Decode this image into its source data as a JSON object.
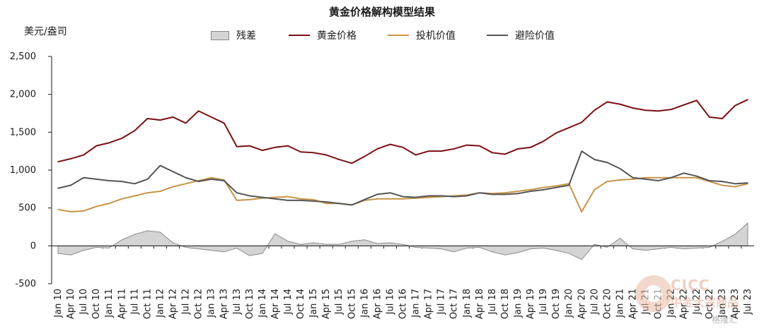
{
  "title": "黄金价格解构模型结果",
  "unit_label": "美元/盎司",
  "legend": [
    {
      "label": "残差",
      "kind": "area",
      "color": "#d4d4d4",
      "edge": "#8a8a8a",
      "icon": "area-swatch"
    },
    {
      "label": "黄金价格",
      "kind": "line",
      "color": "#7a0f12",
      "icon": "line-swatch"
    },
    {
      "label": "投机价值",
      "kind": "line",
      "color": "#c69448",
      "icon": "line-swatch"
    },
    {
      "label": "避险价值",
      "kind": "line",
      "color": "#555555",
      "icon": "line-swatch"
    }
  ],
  "watermark": {
    "logo_text": "CICC",
    "logo_subtext": "中金大宗商品",
    "source_text": "格隆汇"
  },
  "chart_data": {
    "type": "line",
    "x_ticks": [
      "Jan 10",
      "Apr 10",
      "Jul 10",
      "Oct 10",
      "Jan 11",
      "Apr 11",
      "Jul 11",
      "Oct 11",
      "Jan 12",
      "Apr 12",
      "Jul 12",
      "Oct 12",
      "Jan 13",
      "Apr 13",
      "Jul 13",
      "Oct 13",
      "Jan 14",
      "Apr 14",
      "Jul 14",
      "Oct 14",
      "Jan 15",
      "Apr 15",
      "Jul 15",
      "Oct 15",
      "Jan 16",
      "Apr 16",
      "Jul 16",
      "Oct 16",
      "Jan 17",
      "Apr 17",
      "Jul 17",
      "Oct 17",
      "Jan 18",
      "Apr 18",
      "Jul 18",
      "Oct 18",
      "Jan 19",
      "Apr 19",
      "Jul 19",
      "Oct 19",
      "Jan 20",
      "Apr 20",
      "Jul 20",
      "Oct 20",
      "Jan 21",
      "Apr 21",
      "Jul 21",
      "Oct 21",
      "Jan 22",
      "Apr 22",
      "Jul 22",
      "Oct 22",
      "Jan 23",
      "Apr 23",
      "Jul 23"
    ],
    "y_ticks": [
      "2,500",
      "2,000",
      "1,500",
      "1,000",
      "500",
      "0",
      "-500"
    ],
    "ylim": [
      -500,
      2500
    ],
    "y_tick_values": [
      2500,
      2000,
      1500,
      1000,
      500,
      0,
      -500
    ],
    "grid": false,
    "series": [
      {
        "name": "残差",
        "type": "area",
        "color": "#d4d4d4",
        "edge": "#8a8a8a",
        "values": [
          -100,
          -120,
          -60,
          -20,
          -30,
          80,
          150,
          200,
          180,
          40,
          -20,
          -40,
          -60,
          -80,
          -30,
          -130,
          -100,
          160,
          60,
          20,
          40,
          20,
          20,
          60,
          80,
          30,
          40,
          20,
          -20,
          -30,
          -40,
          -80,
          -30,
          -20,
          -80,
          -120,
          -90,
          -40,
          -30,
          -60,
          -100,
          -180,
          20,
          -20,
          100,
          -40,
          -60,
          -40,
          -20,
          -40,
          -30,
          -20,
          60,
          150,
          300
        ]
      },
      {
        "name": "黄金价格",
        "type": "line",
        "color": "#7a0f12",
        "values": [
          1110,
          1150,
          1200,
          1320,
          1360,
          1420,
          1520,
          1680,
          1660,
          1700,
          1620,
          1780,
          1700,
          1620,
          1310,
          1320,
          1260,
          1300,
          1320,
          1240,
          1230,
          1200,
          1140,
          1090,
          1180,
          1280,
          1340,
          1300,
          1200,
          1250,
          1250,
          1280,
          1330,
          1320,
          1230,
          1210,
          1280,
          1300,
          1380,
          1490,
          1560,
          1630,
          1790,
          1900,
          1870,
          1820,
          1790,
          1780,
          1800,
          1860,
          1920,
          1700,
          1680,
          1850,
          1930
        ]
      },
      {
        "name": "投机价值",
        "type": "line",
        "color": "#c69448",
        "values": [
          480,
          450,
          460,
          520,
          560,
          620,
          660,
          700,
          720,
          780,
          820,
          860,
          900,
          870,
          600,
          610,
          630,
          640,
          650,
          620,
          610,
          560,
          560,
          540,
          600,
          620,
          620,
          620,
          630,
          640,
          650,
          660,
          670,
          700,
          690,
          700,
          720,
          740,
          770,
          790,
          820,
          450,
          740,
          850,
          870,
          880,
          900,
          900,
          900,
          900,
          900,
          850,
          800,
          780,
          820
        ]
      },
      {
        "name": "避险价值",
        "type": "line",
        "color": "#555555",
        "values": [
          760,
          800,
          900,
          880,
          860,
          850,
          820,
          880,
          1060,
          980,
          900,
          850,
          880,
          860,
          700,
          660,
          640,
          620,
          600,
          600,
          590,
          580,
          560,
          540,
          610,
          680,
          700,
          650,
          640,
          660,
          660,
          650,
          660,
          700,
          680,
          680,
          690,
          720,
          740,
          770,
          800,
          1250,
          1140,
          1100,
          1020,
          900,
          880,
          860,
          900,
          960,
          920,
          860,
          850,
          820,
          830
        ]
      }
    ]
  }
}
